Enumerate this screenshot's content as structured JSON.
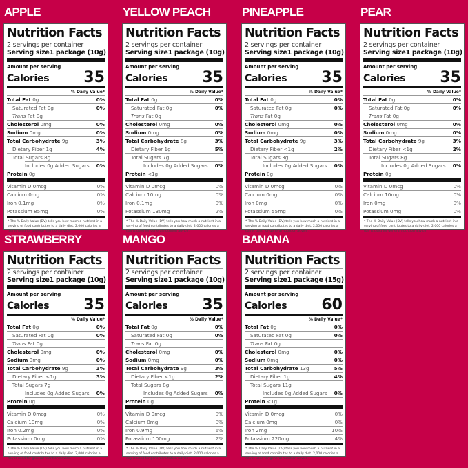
{
  "labels": {
    "nutrition_facts": "Nutrition Facts",
    "serving_size": "Serving size",
    "amount_per_serving": "Amount per serving",
    "calories": "Calories",
    "daily_value": "% Daily Value*",
    "footnote": "* The % Daily Value (DV) tells you how much a nutrient in a serving of food contributes to a daily diet. 2,000 calories a day is used for general nutrition advice.",
    "nutrients": [
      "Total Fat",
      "Saturated Fat",
      "Fat",
      "Cholesterol",
      "Sodium",
      "Total Carbohydrate",
      "Dietary Fiber",
      "Total Sugars",
      "Includes 0g Added Sugars",
      "Protein",
      "Vitamin D",
      "Calcium",
      "Iron",
      "Potassium"
    ],
    "trans_italic": "Trans"
  },
  "colors": {
    "background": "#c60048",
    "text": "#111111"
  },
  "products": [
    {
      "name": "APPLE",
      "servings": "2 servings per container",
      "serving_size": "1 package (10g)",
      "calories": "35",
      "amounts": [
        "0g",
        "0g",
        "0g",
        "0mg",
        "0mg",
        "9g",
        "1g",
        "8g",
        "",
        "0g",
        "0mcg",
        "0mg",
        "0.1mg",
        "85mg"
      ],
      "dv": [
        "0%",
        "0%",
        "",
        "0%",
        "0%",
        "3%",
        "4%",
        "",
        "0%",
        "",
        "0%",
        "0%",
        "0%",
        "0%"
      ]
    },
    {
      "name": "YELLOW PEACH",
      "servings": "2 servings per container",
      "serving_size": "1 package (10g)",
      "calories": "35",
      "amounts": [
        "0g",
        "0g",
        "0g",
        "0mg",
        "0mg",
        "8g",
        "1g",
        "7g",
        "",
        "<1g",
        "0mcg",
        "10mg",
        "0.1mg",
        "130mg"
      ],
      "dv": [
        "0%",
        "0%",
        "",
        "0%",
        "0%",
        "3%",
        "5%",
        "",
        "0%",
        "",
        "0%",
        "0%",
        "0%",
        "2%"
      ]
    },
    {
      "name": "PINEAPPLE",
      "servings": "2 servings per container",
      "serving_size": "1 package (10g)",
      "calories": "35",
      "amounts": [
        "0g",
        "0g",
        "0g",
        "0mg",
        "0mg",
        "9g",
        "<1g",
        "3g",
        "",
        "0g",
        "0mcg",
        "0mg",
        "0mg",
        "55mg"
      ],
      "dv": [
        "0%",
        "0%",
        "",
        "0%",
        "0%",
        "3%",
        "2%",
        "",
        "0%",
        "",
        "0%",
        "0%",
        "0%",
        "0%"
      ]
    },
    {
      "name": "PEAR",
      "servings": "2 servings per container",
      "serving_size": "1 package (10g)",
      "calories": "35",
      "amounts": [
        "0g",
        "0g",
        "0g",
        "0mg",
        "0mg",
        "9g",
        "<1g",
        "8g",
        "",
        "0g",
        "0mcg",
        "10mg",
        "0mg",
        "0mg"
      ],
      "dv": [
        "0%",
        "0%",
        "",
        "0%",
        "0%",
        "3%",
        "2%",
        "",
        "0%",
        "",
        "0%",
        "0%",
        "0%",
        "0%"
      ]
    },
    {
      "name": "STRAWBERRY",
      "servings": "2 servings per container",
      "serving_size": "1 package (10g)",
      "calories": "35",
      "amounts": [
        "0g",
        "0g",
        "0g",
        "0mg",
        "0mg",
        "9g",
        "<1g",
        "7g",
        "",
        "0g",
        "0mcg",
        "10mg",
        "0.2mg",
        "0mg"
      ],
      "dv": [
        "0%",
        "0%",
        "",
        "0%",
        "0%",
        "3%",
        "3%",
        "",
        "0%",
        "",
        "0%",
        "0%",
        "0%",
        "0%"
      ]
    },
    {
      "name": "MANGO",
      "servings": "2 servings per container",
      "serving_size": "1 package (10g)",
      "calories": "35",
      "amounts": [
        "0g",
        "0g",
        "0g",
        "0mg",
        "0mg",
        "9g",
        "<1g",
        "8g",
        "",
        "0g",
        "0mcg",
        "0mg",
        "0.9mg",
        "100mg"
      ],
      "dv": [
        "0%",
        "0%",
        "",
        "0%",
        "0%",
        "3%",
        "2%",
        "",
        "0%",
        "",
        "0%",
        "0%",
        "6%",
        "2%"
      ]
    },
    {
      "name": "BANANA",
      "servings": "2 servings per container",
      "serving_size": "1 package (15g)",
      "calories": "60",
      "amounts": [
        "0g",
        "0g",
        "0g",
        "0mg",
        "0mg",
        "13g",
        "1g",
        "11g",
        "",
        "<1g",
        "0mcg",
        "0mg",
        "2mg",
        "220mg"
      ],
      "dv": [
        "0%",
        "0%",
        "",
        "0%",
        "0%",
        "5%",
        "4%",
        "",
        "0%",
        "",
        "0%",
        "0%",
        "10%",
        "4%"
      ]
    }
  ]
}
